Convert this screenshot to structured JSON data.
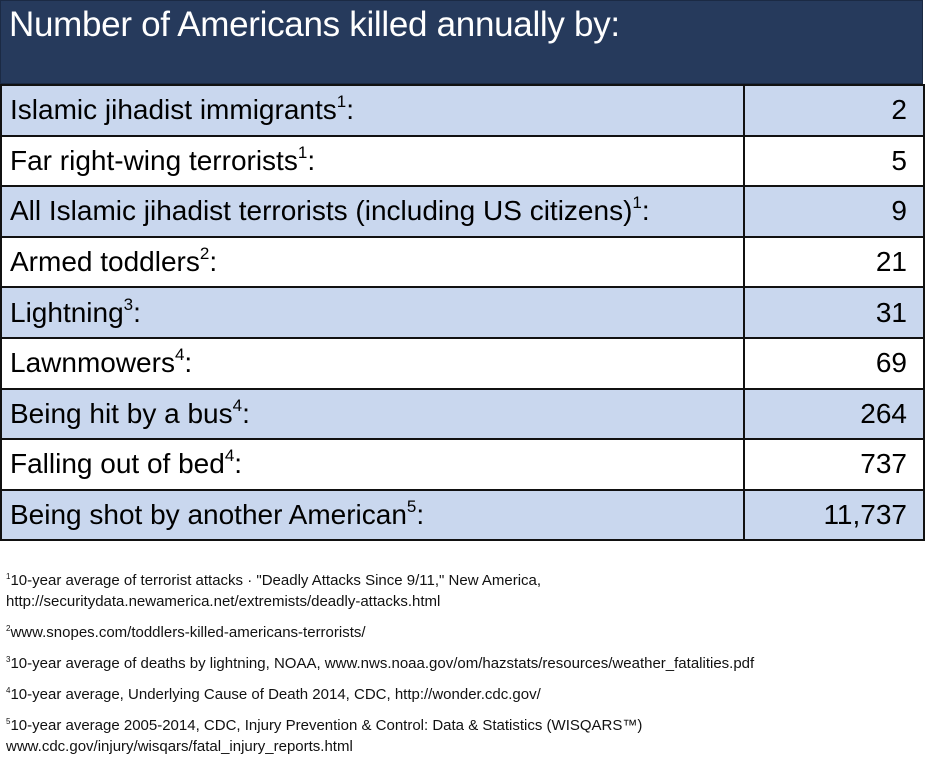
{
  "header": {
    "title": "Number of Americans killed annually by:"
  },
  "table": {
    "rows": [
      {
        "label": "Islamic jihadist immigrants",
        "ref": "1",
        "colon": ":",
        "value": "2"
      },
      {
        "label": "Far right-wing terrorists",
        "ref": "1",
        "colon": ":",
        "value": "5"
      },
      {
        "label": "All Islamic jihadist terrorists (including US citizens)",
        "ref": "1",
        "colon": ":",
        "value": "9"
      },
      {
        "label": "Armed toddlers",
        "ref": "2",
        "colon": ":",
        "value": "21"
      },
      {
        "label": "Lightning",
        "ref": "3",
        "colon": ":",
        "value": "31"
      },
      {
        "label": "Lawnmowers",
        "ref": "4",
        "colon": ":",
        "value": "69"
      },
      {
        "label": "Being hit by a bus",
        "ref": "4",
        "colon": ":",
        "value": "264"
      },
      {
        "label": "Falling out of bed",
        "ref": "4",
        "colon": ":",
        "value": "737"
      },
      {
        "label": "Being shot by another American",
        "ref": "5",
        "colon": ":",
        "value": "11,737"
      }
    ]
  },
  "footnotes": [
    {
      "ref": "1",
      "lines": [
        "10-year average of terrorist attacks · \"Deadly Attacks Since 9/11,\" New America,",
        "http://securitydata.newamerica.net/extremists/deadly-attacks.html"
      ]
    },
    {
      "ref": "2",
      "lines": [
        "www.snopes.com/toddlers-killed-americans-terrorists/"
      ]
    },
    {
      "ref": "3",
      "lines": [
        "10-year average of deaths by lightning, NOAA, www.nws.noaa.gov/om/hazstats/resources/weather_fatalities.pdf"
      ]
    },
    {
      "ref": "4",
      "lines": [
        "10-year average, Underlying Cause of Death 2014, CDC, http://wonder.cdc.gov/"
      ]
    },
    {
      "ref": "5",
      "lines": [
        "10-year average 2005-2014, CDC, Injury Prevention & Control: Data & Statistics (WISQARS™)",
        "www.cdc.gov/injury/wisqars/fatal_injury_reports.html"
      ]
    }
  ]
}
